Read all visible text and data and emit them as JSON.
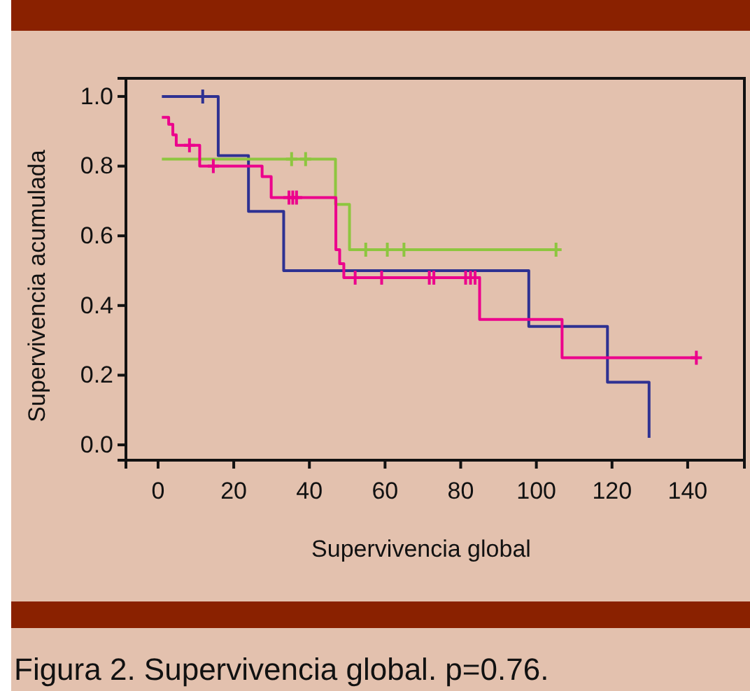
{
  "chart_data": {
    "type": "step",
    "title": "Figura 2. Supervivencia global. p=0.76.",
    "xlabel": "Supervivencia global",
    "ylabel": "Supervivencia acumulada",
    "xlim": [
      -8.5,
      155
    ],
    "ylim": [
      -0.044,
      1.052
    ],
    "xticks": [
      0,
      20,
      40,
      60,
      80,
      100,
      120,
      140
    ],
    "yticks": [
      {
        "value": 0,
        "label": "0.0"
      },
      0.2,
      0.4,
      0.6,
      0.8,
      {
        "value": 1,
        "label": "1.0"
      }
    ],
    "grid": false,
    "series": [
      {
        "color": "#2e3192",
        "x": [
          1,
          15.9,
          23.9,
          33.2,
          98,
          118.8,
          129.8
        ],
        "values": [
          1,
          0.83,
          0.67,
          0.5,
          0.34,
          0.18,
          0.02
        ]
      },
      {
        "color": "#8dc63f",
        "x": [
          1,
          46.9,
          50.6,
          105.2
        ],
        "values": [
          0.82,
          0.69,
          0.56,
          0.56
        ]
      },
      {
        "color": "#ec008c",
        "x": [
          1,
          2.8,
          3.9,
          4.8,
          11,
          27.5,
          29.9,
          47,
          48,
          49.1,
          85,
          106.8,
          142.3
        ],
        "values": [
          0.94,
          0.92,
          0.89,
          0.86,
          0.8,
          0.77,
          0.71,
          0.56,
          0.52,
          0.48,
          0.36,
          0.25,
          0.25
        ]
      },
      {
        "type": "scatter",
        "marker": "cross",
        "color": "#2e3192",
        "x": [
          11.8
        ],
        "values": [
          1
        ]
      },
      {
        "type": "scatter",
        "marker": "cross",
        "color": "#8dc63f",
        "x": [
          35.3,
          39,
          54.9,
          60.6,
          65,
          105.2
        ],
        "values": [
          0.82,
          0.82,
          0.56,
          0.56,
          0.56,
          0.56
        ]
      },
      {
        "type": "scatter",
        "marker": "cross",
        "color": "#ec008c",
        "x": [
          8.3,
          14.6,
          34.6,
          35.6,
          36.6,
          52.1,
          59.1,
          71.7,
          72.9,
          81.3,
          82.6,
          83.8,
          142.3
        ],
        "values": [
          0.86,
          0.8,
          0.71,
          0.71,
          0.71,
          0.48,
          0.48,
          0.48,
          0.48,
          0.48,
          0.48,
          0.48,
          0.25
        ]
      }
    ]
  }
}
